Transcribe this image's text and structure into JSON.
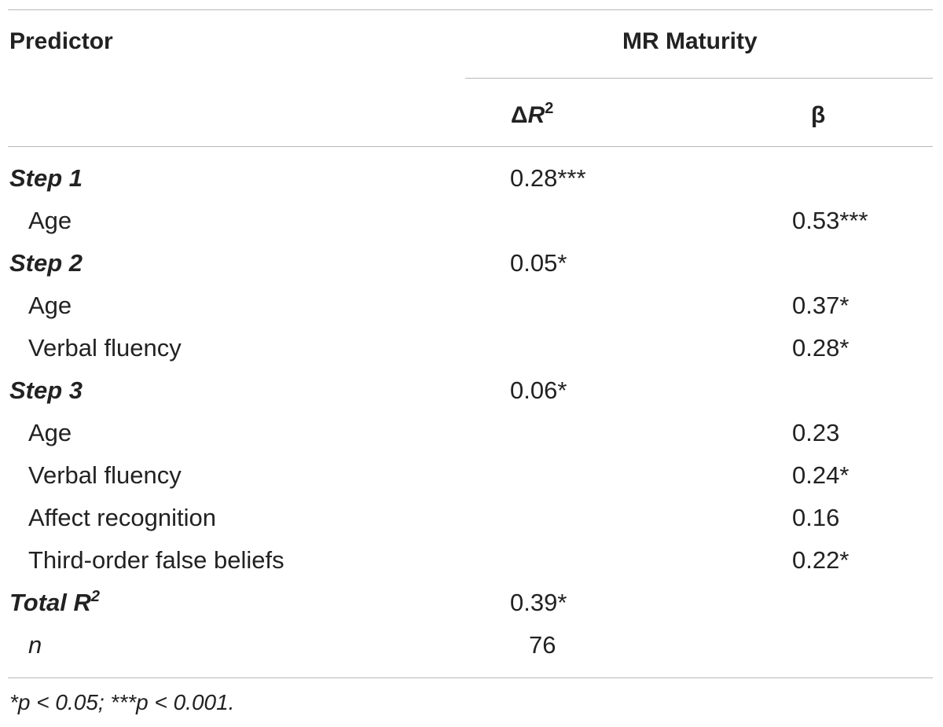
{
  "header": {
    "predictor": "Predictor",
    "group": "MR Maturity",
    "col_delta_symbol": "Δ",
    "col_delta_var": "R",
    "col_delta_sup": "2",
    "col_beta": "β"
  },
  "rows": [
    {
      "predictor": "Step 1",
      "delta_r2": "0.28***",
      "beta": ""
    },
    {
      "predictor": "Age",
      "delta_r2": "",
      "beta": "0.53***"
    },
    {
      "predictor": "Step 2",
      "delta_r2": "0.05*",
      "beta": ""
    },
    {
      "predictor": "Age",
      "delta_r2": "",
      "beta": "0.37*"
    },
    {
      "predictor": "Verbal fluency",
      "delta_r2": "",
      "beta": "0.28*"
    },
    {
      "predictor": "Step 3",
      "delta_r2": "0.06*",
      "beta": ""
    },
    {
      "predictor": "Age",
      "delta_r2": "",
      "beta": "0.23"
    },
    {
      "predictor": "Verbal fluency",
      "delta_r2": "",
      "beta": "0.24*"
    },
    {
      "predictor": "Affect recognition",
      "delta_r2": "",
      "beta": "0.16"
    },
    {
      "predictor": "Third-order false beliefs",
      "delta_r2": "",
      "beta": "0.22*"
    }
  ],
  "total": {
    "label": "Total R",
    "sup": "2",
    "value": "0.39*"
  },
  "n": {
    "label": "n",
    "value": "76"
  },
  "footnote": "*p < 0.05; ***p < 0.001."
}
